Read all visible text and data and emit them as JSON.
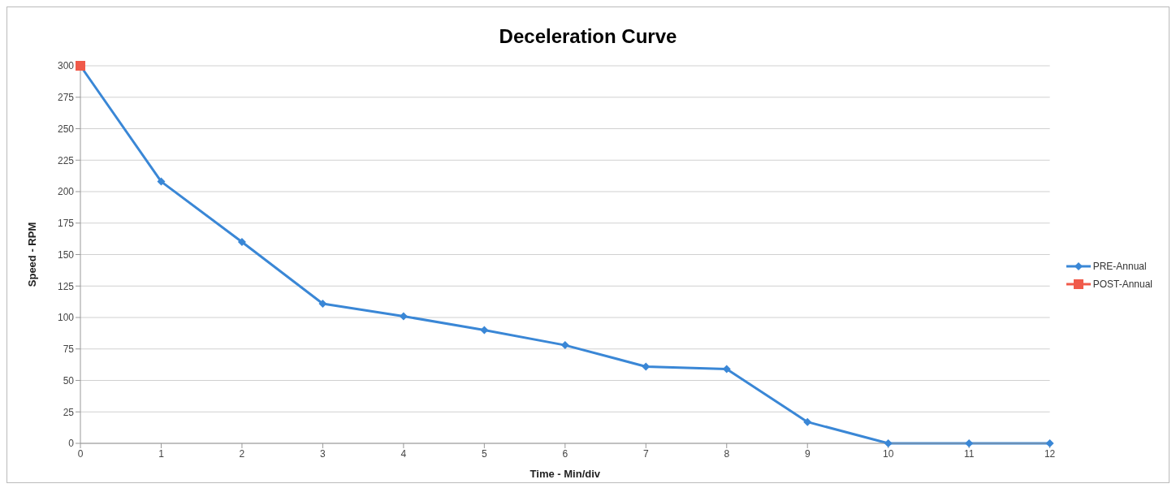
{
  "chart_data": {
    "type": "line",
    "title": "Deceleration Curve",
    "xlabel": "Time - Min/div",
    "ylabel": "Speed - RPM",
    "x": [
      0,
      1,
      2,
      3,
      4,
      5,
      6,
      7,
      8,
      9,
      10,
      11,
      12
    ],
    "series": [
      {
        "name": "PRE-Annual",
        "color": "#3a87d6",
        "marker": "diamond",
        "values": [
          300,
          208,
          160,
          111,
          101,
          90,
          78,
          61,
          59,
          17,
          0,
          0,
          0
        ]
      },
      {
        "name": "POST-Annual",
        "color": "#f05a4a",
        "marker": "square",
        "x": [
          0
        ],
        "values": [
          300
        ]
      }
    ],
    "xlim": [
      0,
      12
    ],
    "xticks": [
      0,
      1,
      2,
      3,
      4,
      5,
      6,
      7,
      8,
      9,
      10,
      11,
      12
    ],
    "ylim": [
      0,
      300
    ],
    "yticks": [
      0,
      25,
      50,
      75,
      100,
      125,
      150,
      175,
      200,
      225,
      250,
      275,
      300
    ],
    "grid": "y",
    "legend": "right",
    "line_style": "solid"
  }
}
